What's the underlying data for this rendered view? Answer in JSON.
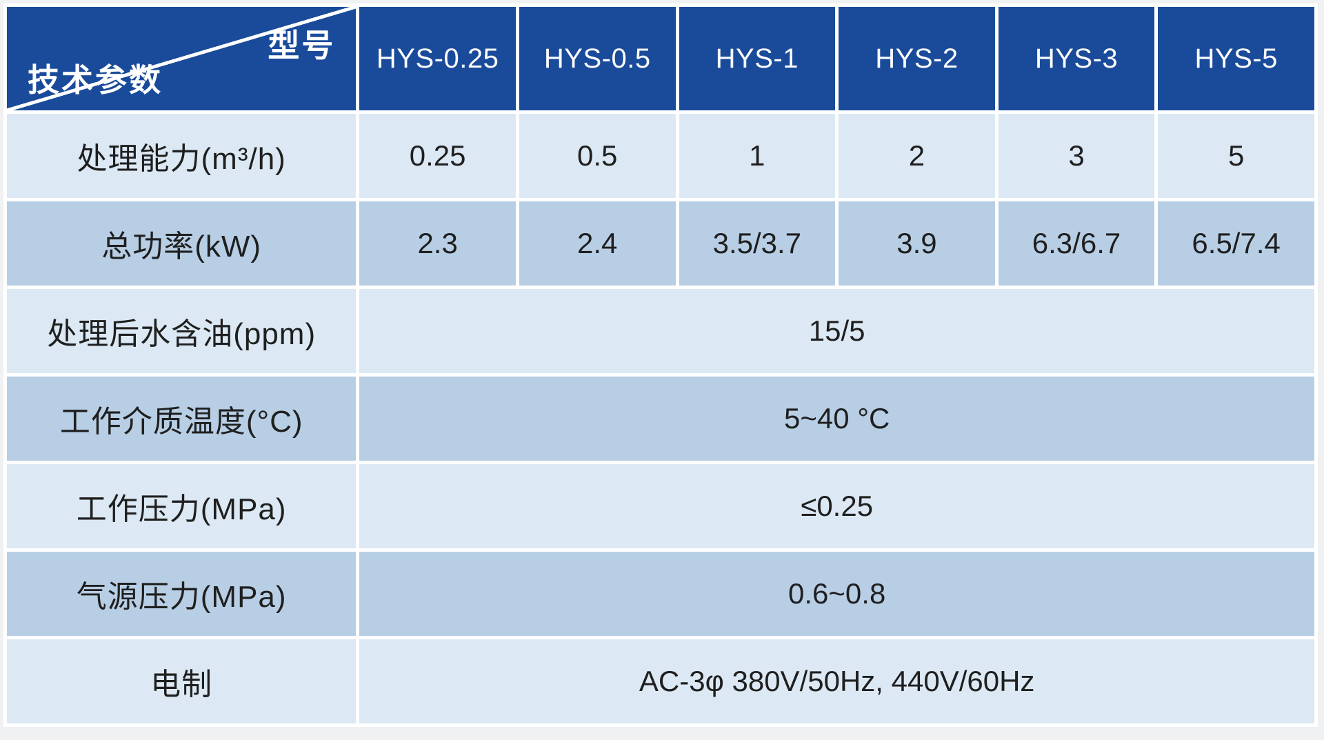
{
  "table": {
    "corner": {
      "model_label": "型号",
      "params_label": "技术参数"
    },
    "columns": [
      "HYS-0.25",
      "HYS-0.5",
      "HYS-1",
      "HYS-2",
      "HYS-3",
      "HYS-5"
    ],
    "rows": [
      {
        "label": "处理能力(m³/h)",
        "values": [
          "0.25",
          "0.5",
          "1",
          "2",
          "3",
          "5"
        ]
      },
      {
        "label": "总功率(kW)",
        "values": [
          "2.3",
          "2.4",
          "3.5/3.7",
          "3.9",
          "6.3/6.7",
          "6.5/7.4"
        ]
      },
      {
        "label": "处理后水含油(ppm)",
        "merged_value": "15/5"
      },
      {
        "label": "工作介质温度(°C)",
        "merged_value": "5~40 °C"
      },
      {
        "label": "工作压力(MPa)",
        "merged_value": "≤0.25"
      },
      {
        "label": "气源压力(MPa)",
        "merged_value": "0.6~0.8"
      },
      {
        "label": "电制",
        "merged_value": "AC-3φ 380V/50Hz, 440V/60Hz"
      }
    ],
    "colors": {
      "header_bg": "#1a4b9a",
      "row_light_bg": "#dce9f4",
      "row_dark_bg": "#b7cee5",
      "header_text": "#ffffff",
      "body_text": "#1f1f1f",
      "divider": "#ffffff",
      "page_bg": "#f0f1f2"
    }
  }
}
